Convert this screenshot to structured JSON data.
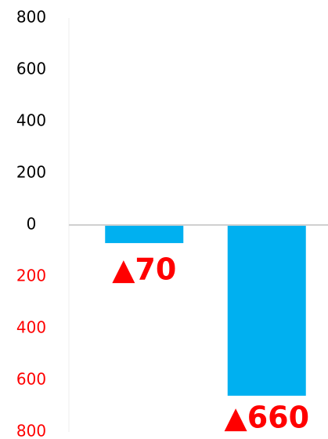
{
  "chart_data": {
    "type": "bar",
    "categories": [
      null,
      null
    ],
    "values": [
      -70,
      -660
    ],
    "value_labels": [
      "▲70",
      "▲660"
    ],
    "color": "#00b0f0",
    "negative_color": "#ff0000",
    "ylim": [
      -800,
      800
    ],
    "yticks": [
      {
        "value": -800,
        "label": "800"
      },
      {
        "value": -600,
        "label": "600"
      },
      {
        "value": -400,
        "label": "400"
      },
      {
        "value": -200,
        "label": "200"
      },
      0,
      200,
      400,
      600,
      800
    ],
    "grid": false
  }
}
